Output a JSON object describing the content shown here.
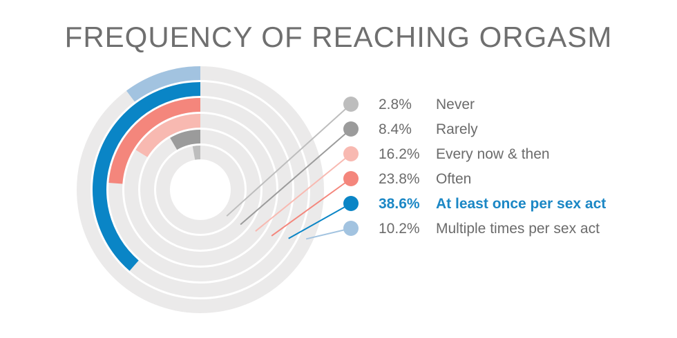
{
  "title": "FREQUENCY OF REACHING ORGASM",
  "chart_data": {
    "type": "radial-bar",
    "title": "FREQUENCY OF REACHING ORGASM",
    "unit": "%",
    "highlight": "At least once per sex act",
    "series": [
      {
        "label": "Never",
        "value": 2.8,
        "value_text": "2.8%",
        "color": "#bdbdbd"
      },
      {
        "label": "Rarely",
        "value": 8.4,
        "value_text": "8.4%",
        "color": "#9b9b9b"
      },
      {
        "label": "Every now & then",
        "value": 16.2,
        "value_text": "16.2%",
        "color": "#f8b9b1"
      },
      {
        "label": "Often",
        "value": 23.8,
        "value_text": "23.8%",
        "color": "#f4867c"
      },
      {
        "label": "At least once per sex act",
        "value": 38.6,
        "value_text": "38.6%",
        "color": "#0a85c6"
      },
      {
        "label": "Multiple times per sex act",
        "value": 10.2,
        "value_text": "10.2%",
        "color": "#a2c3e0"
      }
    ],
    "colors": {
      "track": "#ebeaea",
      "highlight_text": "#1b87c5",
      "text": "#6b6b6b"
    }
  }
}
